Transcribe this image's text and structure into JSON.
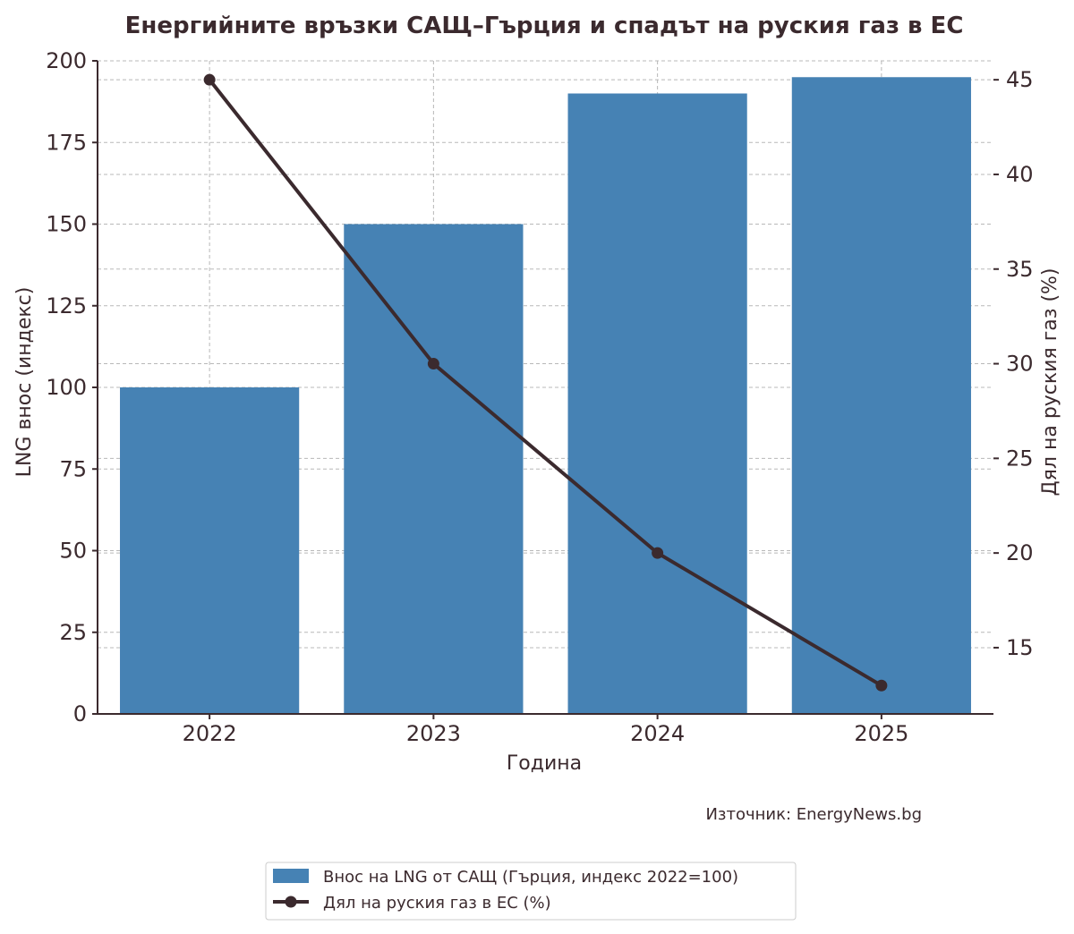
{
  "chart_data": {
    "type": "bar+line",
    "title": "Енергийните връзки САЩ–Гърция и спадът на руския газ в ЕС",
    "xlabel": "Година",
    "ylabel_left": "LNG внос (индекс)",
    "ylabel_right": "Дял на руския газ (%)",
    "categories": [
      "2022",
      "2023",
      "2024",
      "2025"
    ],
    "ylim_left": [
      0,
      200
    ],
    "yticks_left": [
      0,
      25,
      50,
      75,
      100,
      125,
      150,
      175,
      200
    ],
    "ylim_right": [
      11.5,
      46
    ],
    "yticks_right": [
      15,
      20,
      25,
      30,
      35,
      40,
      45
    ],
    "grid": true,
    "legend_position": "bottom-center (below chart)",
    "source_note": "Източник: EnergyNews.bg",
    "series": [
      {
        "name": "Внос на LNG от САЩ (Гърция, индекс 2022=100)",
        "kind": "bar",
        "axis": "left",
        "color": "#4682b4",
        "values": [
          100,
          150,
          190,
          195
        ]
      },
      {
        "name": "Дял на руския газ в ЕС (%)",
        "kind": "line",
        "axis": "right",
        "color": "#3b2a2e",
        "values": [
          45,
          30,
          20,
          13
        ]
      }
    ]
  }
}
